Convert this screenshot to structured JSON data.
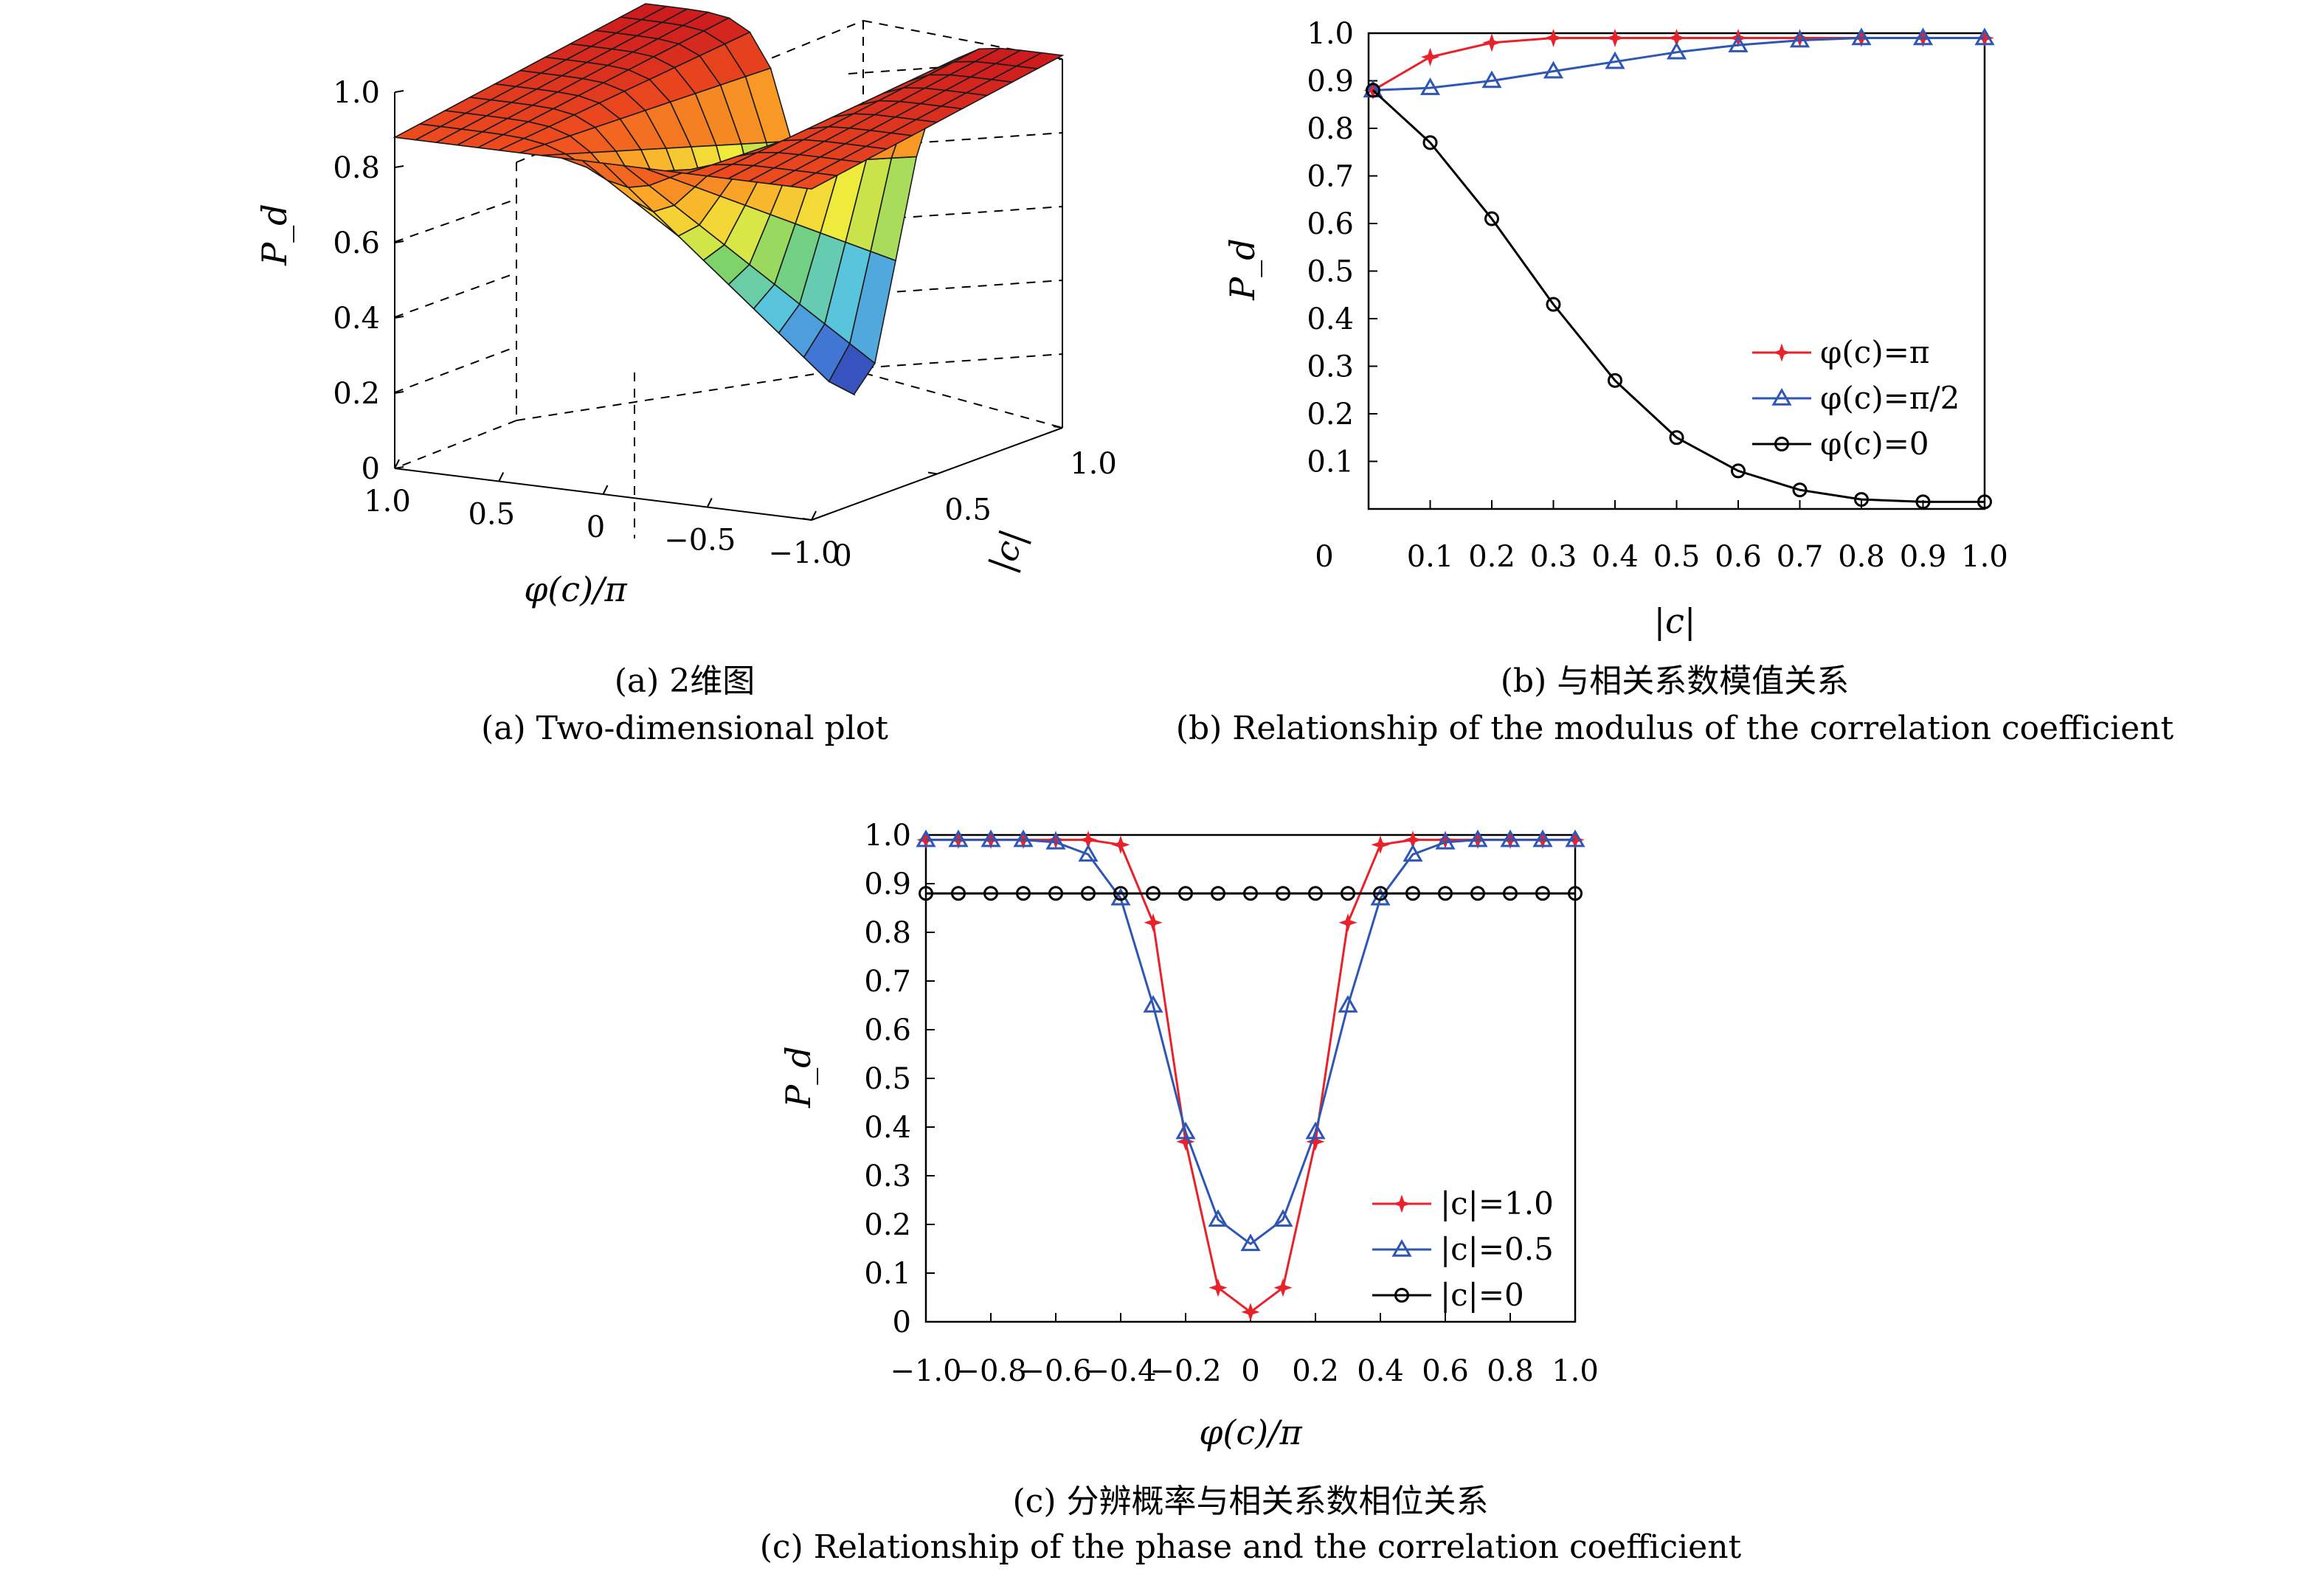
{
  "captions": {
    "a_cn": "(a) 2维图",
    "a_en": "(a) Two-dimensional plot",
    "b_cn": "(b) 与相关系数模值关系",
    "b_en": "(b) Relationship of the modulus of the correlation coefficient",
    "c_cn": "(c) 分辨概率与相关系数相位关系",
    "c_en": "(c)  Relationship of the phase and the correlation coefficient"
  },
  "colors": {
    "red": "#e8222b",
    "blue": "#2d56b5",
    "black": "#000000"
  },
  "chart_data": [
    {
      "id": "a",
      "type": "surface",
      "xlabel": "φ(c)/π",
      "ylabel": "|c|",
      "zlabel": "P_d",
      "x_ticks": [
        "1.0",
        "0.5",
        "0",
        "−0.5",
        "−1.0"
      ],
      "y_ticks": [
        "0",
        "0.5",
        "1.0"
      ],
      "z_ticks": [
        "0",
        "0.2",
        "0.4",
        "0.6",
        "0.8",
        "1.0"
      ],
      "xlim": [
        -1.0,
        1.0
      ],
      "ylim": [
        0,
        1.0
      ],
      "zlim": [
        0,
        1.0
      ],
      "colormap": "jet"
    },
    {
      "id": "b",
      "type": "line",
      "xlabel": "|c|",
      "ylabel": "P_d",
      "xlim": [
        0,
        1.0
      ],
      "ylim": [
        0,
        1.0
      ],
      "x_ticks": [
        "0",
        "0.1",
        "0.2",
        "0.3",
        "0.4",
        "0.5",
        "0.6",
        "0.7",
        "0.8",
        "0.9",
        "1.0"
      ],
      "y_ticks": [
        "0.1",
        "0.2",
        "0.3",
        "0.4",
        "0.5",
        "0.6",
        "0.7",
        "0.8",
        "0.9",
        "1.0"
      ],
      "legend_position": "center-right",
      "series": [
        {
          "name": "φ(c)=π",
          "color": "#e8222b",
          "marker": "star",
          "x": [
            0,
            0.1,
            0.2,
            0.3,
            0.4,
            0.5,
            0.6,
            0.7,
            0.8,
            0.9,
            1.0
          ],
          "y": [
            0.88,
            0.95,
            0.98,
            0.99,
            0.99,
            0.99,
            0.99,
            0.99,
            0.99,
            0.99,
            0.99
          ]
        },
        {
          "name": "φ(c)=π/2",
          "color": "#2d56b5",
          "marker": "triangle",
          "x": [
            0,
            0.1,
            0.2,
            0.3,
            0.4,
            0.5,
            0.6,
            0.7,
            0.8,
            0.9,
            1.0
          ],
          "y": [
            0.88,
            0.885,
            0.9,
            0.92,
            0.94,
            0.96,
            0.975,
            0.985,
            0.99,
            0.99,
            0.99
          ]
        },
        {
          "name": "φ(c)=0",
          "color": "#000000",
          "marker": "circle",
          "x": [
            0,
            0.1,
            0.2,
            0.3,
            0.4,
            0.5,
            0.6,
            0.7,
            0.8,
            0.9,
            1.0
          ],
          "y": [
            0.88,
            0.77,
            0.61,
            0.43,
            0.27,
            0.15,
            0.08,
            0.04,
            0.02,
            0.015,
            0.015
          ]
        }
      ]
    },
    {
      "id": "c",
      "type": "line",
      "xlabel": "φ(c)/π",
      "ylabel": "P_d",
      "xlim": [
        -1.0,
        1.0
      ],
      "ylim": [
        0,
        1.0
      ],
      "x_ticks": [
        "−1.0",
        "−0.8",
        "−0.6",
        "−0.4",
        "−0.2",
        "0",
        "0.2",
        "0.4",
        "0.6",
        "0.8",
        "1.0"
      ],
      "y_ticks": [
        "0",
        "0.1",
        "0.2",
        "0.3",
        "0.4",
        "0.5",
        "0.6",
        "0.7",
        "0.8",
        "0.9",
        "1.0"
      ],
      "legend_position": "bottom-right",
      "x": [
        -1.0,
        -0.9,
        -0.8,
        -0.7,
        -0.6,
        -0.5,
        -0.4,
        -0.3,
        -0.2,
        -0.1,
        0,
        0.1,
        0.2,
        0.3,
        0.4,
        0.5,
        0.6,
        0.7,
        0.8,
        0.9,
        1.0
      ],
      "series": [
        {
          "name": "|c|=1.0",
          "color": "#e8222b",
          "marker": "star",
          "y": [
            0.99,
            0.99,
            0.99,
            0.99,
            0.99,
            0.99,
            0.98,
            0.82,
            0.37,
            0.07,
            0.02,
            0.07,
            0.37,
            0.82,
            0.98,
            0.99,
            0.99,
            0.99,
            0.99,
            0.99,
            0.99
          ]
        },
        {
          "name": "|c|=0.5",
          "color": "#2d56b5",
          "marker": "triangle",
          "y": [
            0.99,
            0.99,
            0.99,
            0.99,
            0.985,
            0.96,
            0.87,
            0.65,
            0.39,
            0.21,
            0.16,
            0.21,
            0.39,
            0.65,
            0.87,
            0.96,
            0.985,
            0.99,
            0.99,
            0.99,
            0.99
          ]
        },
        {
          "name": "|c|=0",
          "color": "#000000",
          "marker": "circle",
          "y": [
            0.88,
            0.88,
            0.88,
            0.88,
            0.88,
            0.88,
            0.88,
            0.88,
            0.88,
            0.88,
            0.88,
            0.88,
            0.88,
            0.88,
            0.88,
            0.88,
            0.88,
            0.88,
            0.88,
            0.88,
            0.88
          ]
        }
      ]
    }
  ]
}
